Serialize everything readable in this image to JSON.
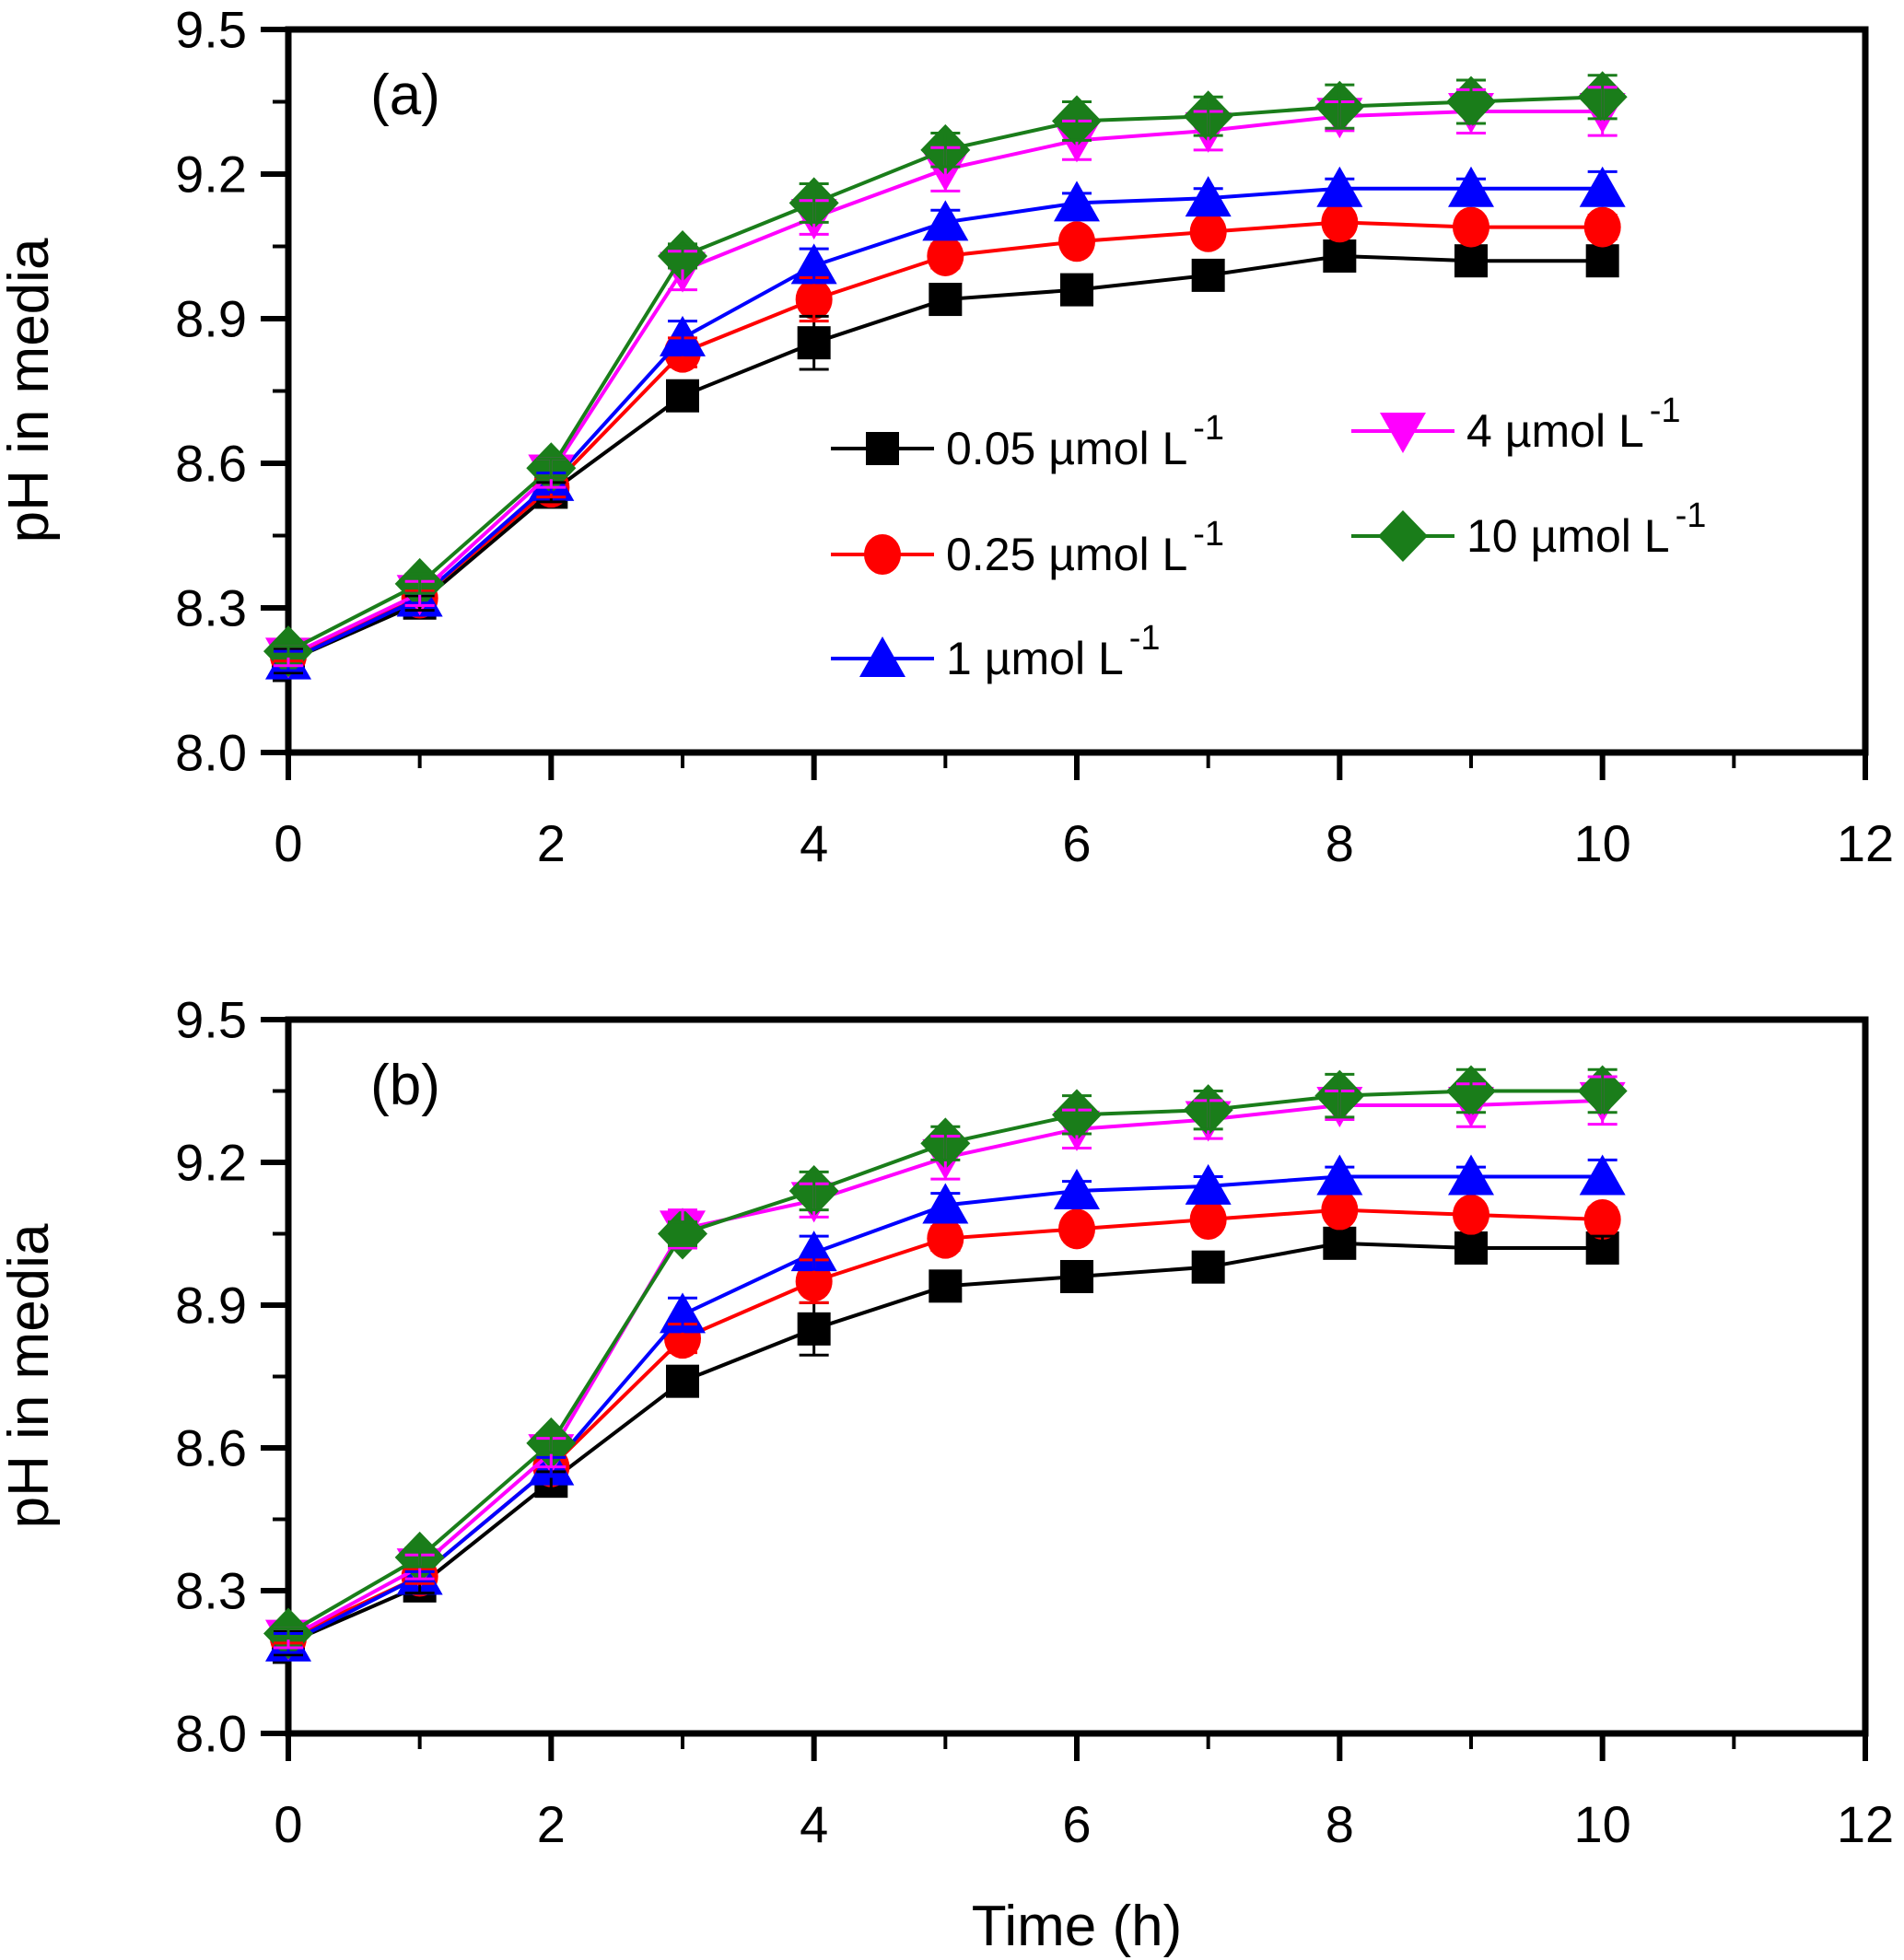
{
  "figure": {
    "panel_a_label": "(a)",
    "panel_b_label": "(b)",
    "y_axis_label": "pH in media",
    "x_axis_label": "Time (h)"
  },
  "colors": {
    "black": "#000000",
    "red": "#ff0000",
    "blue": "#0000ff",
    "magenta": "#ff00ff",
    "green": "#1a7d1a"
  },
  "legend": {
    "entries": [
      {
        "amount": "0.05",
        "unit": "µmol L",
        "exponent": "-1",
        "marker": "square",
        "color": "#000000"
      },
      {
        "amount": "0.25",
        "unit": "µmol L",
        "exponent": "-1",
        "marker": "circle",
        "color": "#ff0000"
      },
      {
        "amount": "1",
        "unit": "µmol L",
        "exponent": "-1",
        "marker": "triangle-up",
        "color": "#0000ff"
      },
      {
        "amount": "4",
        "unit": "µmol L",
        "exponent": "-1",
        "marker": "triangle-down",
        "color": "#ff00ff"
      },
      {
        "amount": "10",
        "unit": "µmol L",
        "exponent": "-1",
        "marker": "diamond",
        "color": "#1a7d1a"
      }
    ]
  },
  "chart_data": [
    {
      "type": "line",
      "panel": "a",
      "title": "(a)",
      "xlabel": "",
      "ylabel": "pH in media",
      "xlim": [
        0,
        12
      ],
      "ylim": [
        8.0,
        9.5
      ],
      "x_ticks": [
        0,
        2,
        4,
        6,
        8,
        10,
        12
      ],
      "x_minor_ticks": [
        1,
        3,
        5,
        7,
        9,
        11
      ],
      "y_ticks": [
        8.0,
        8.3,
        8.6,
        8.9,
        9.2,
        9.5
      ],
      "y_minor_ticks": [
        8.15,
        8.45,
        8.75,
        9.05,
        9.35
      ],
      "grid": false,
      "legend_position": "inside lower-right of plot, two columns",
      "x": [
        0,
        1,
        2,
        3,
        4,
        5,
        6,
        7,
        8,
        9,
        10
      ],
      "series": [
        {
          "name": "0.05 µmol L-1",
          "color": "#000000",
          "marker": "square",
          "values": [
            8.19,
            8.31,
            8.54,
            8.74,
            8.85,
            8.94,
            8.96,
            8.99,
            9.03,
            9.02,
            9.02
          ],
          "errors": [
            0.025,
            0.015,
            0.02,
            0.03,
            0.055,
            0.025,
            0.02,
            0.015,
            0.025,
            0.025,
            0.025
          ]
        },
        {
          "name": "0.25 µmol L-1",
          "color": "#ff0000",
          "marker": "circle",
          "values": [
            8.2,
            8.32,
            8.55,
            8.83,
            8.94,
            9.03,
            9.06,
            9.08,
            9.1,
            9.09,
            9.09
          ],
          "errors": [
            0.01,
            0.015,
            0.02,
            0.03,
            0.045,
            0.025,
            0.02,
            0.02,
            0.02,
            0.02,
            0.025
          ]
        },
        {
          "name": "1 µmol L-1",
          "color": "#0000ff",
          "marker": "triangle-up",
          "values": [
            8.19,
            8.32,
            8.56,
            8.86,
            9.01,
            9.1,
            9.14,
            9.15,
            9.17,
            9.17,
            9.17
          ],
          "errors": [
            0.02,
            0.01,
            0.02,
            0.035,
            0.035,
            0.025,
            0.02,
            0.02,
            0.02,
            0.02,
            0.035
          ]
        },
        {
          "name": "4 µmol L-1",
          "color": "#ff00ff",
          "marker": "triangle-down",
          "values": [
            8.2,
            8.33,
            8.58,
            9.0,
            9.11,
            9.21,
            9.27,
            9.29,
            9.32,
            9.33,
            9.33
          ],
          "errors": [
            0.02,
            0.025,
            0.03,
            0.04,
            0.035,
            0.045,
            0.04,
            0.04,
            0.03,
            0.045,
            0.05
          ]
        },
        {
          "name": "10 µmol L-1",
          "color": "#1a7d1a",
          "marker": "diamond",
          "values": [
            8.21,
            8.35,
            8.59,
            9.03,
            9.14,
            9.25,
            9.31,
            9.32,
            9.34,
            9.35,
            9.36
          ],
          "errors": [
            0.01,
            0.02,
            0.02,
            0.025,
            0.04,
            0.035,
            0.04,
            0.04,
            0.045,
            0.045,
            0.045
          ]
        }
      ]
    },
    {
      "type": "line",
      "panel": "b",
      "title": "(b)",
      "xlabel": "Time (h)",
      "ylabel": "pH in media",
      "xlim": [
        0,
        12
      ],
      "ylim": [
        8.0,
        9.5
      ],
      "x_ticks": [
        0,
        2,
        4,
        6,
        8,
        10,
        12
      ],
      "x_minor_ticks": [
        1,
        3,
        5,
        7,
        9,
        11
      ],
      "y_ticks": [
        8.0,
        8.3,
        8.6,
        8.9,
        9.2,
        9.5
      ],
      "y_minor_ticks": [
        8.15,
        8.45,
        8.75,
        9.05,
        9.35
      ],
      "grid": false,
      "legend_position": "none",
      "x": [
        0,
        1,
        2,
        3,
        4,
        5,
        6,
        7,
        8,
        9,
        10
      ],
      "series": [
        {
          "name": "0.05 µmol L-1",
          "color": "#000000",
          "marker": "square",
          "values": [
            8.19,
            8.31,
            8.53,
            8.74,
            8.85,
            8.94,
            8.96,
            8.98,
            9.03,
            9.02,
            9.02
          ],
          "errors": [
            0.025,
            0.015,
            0.02,
            0.03,
            0.055,
            0.025,
            0.02,
            0.015,
            0.025,
            0.025,
            0.025
          ]
        },
        {
          "name": "0.25 µmol L-1",
          "color": "#ff0000",
          "marker": "circle",
          "values": [
            8.2,
            8.33,
            8.56,
            8.83,
            8.95,
            9.04,
            9.06,
            9.08,
            9.1,
            9.09,
            9.08
          ],
          "errors": [
            0.01,
            0.015,
            0.02,
            0.03,
            0.045,
            0.025,
            0.02,
            0.02,
            0.02,
            0.02,
            0.025
          ]
        },
        {
          "name": "1 µmol L-1",
          "color": "#0000ff",
          "marker": "triangle-up",
          "values": [
            8.19,
            8.33,
            8.56,
            8.88,
            9.01,
            9.11,
            9.14,
            9.15,
            9.17,
            9.17,
            9.17
          ],
          "errors": [
            0.02,
            0.01,
            0.02,
            0.035,
            0.035,
            0.025,
            0.02,
            0.02,
            0.02,
            0.02,
            0.035
          ]
        },
        {
          "name": "4 µmol L-1",
          "color": "#ff00ff",
          "marker": "triangle-down",
          "values": [
            8.2,
            8.35,
            8.59,
            9.06,
            9.12,
            9.21,
            9.27,
            9.29,
            9.32,
            9.32,
            9.33
          ],
          "errors": [
            0.02,
            0.025,
            0.03,
            0.04,
            0.035,
            0.045,
            0.04,
            0.04,
            0.03,
            0.045,
            0.05
          ]
        },
        {
          "name": "10 µmol L-1",
          "color": "#1a7d1a",
          "marker": "diamond",
          "values": [
            8.21,
            8.37,
            8.61,
            9.05,
            9.14,
            9.24,
            9.3,
            9.31,
            9.34,
            9.35,
            9.35
          ],
          "errors": [
            0.01,
            0.02,
            0.02,
            0.025,
            0.04,
            0.035,
            0.04,
            0.04,
            0.045,
            0.045,
            0.045
          ]
        }
      ]
    }
  ]
}
